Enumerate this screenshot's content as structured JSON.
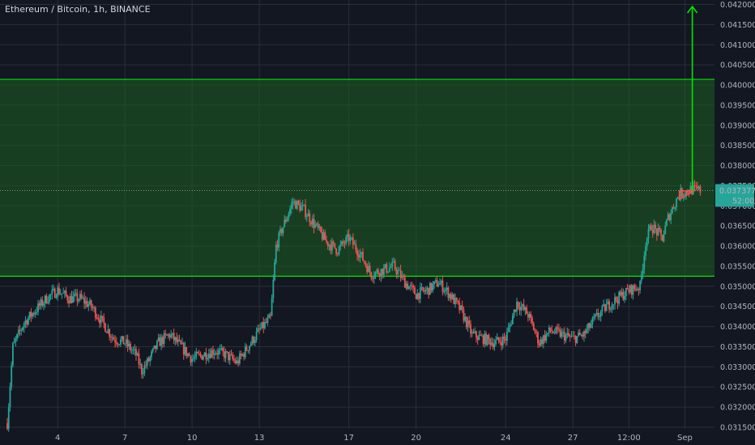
{
  "header": {
    "title": "Ethereum / Bitcoin, 1h, BINANCE"
  },
  "price_label": {
    "value": "0.037377",
    "countdown": "52:00"
  },
  "colors": {
    "background": "#131722",
    "grid": "#2a2e39",
    "up": "#26a69a",
    "down": "#ef5350",
    "zone_fill": "#1b5e20",
    "zone_line": "#00e600",
    "arrow": "#00e600",
    "price_badge": "#26a69a",
    "triangle": "#ef5350"
  },
  "chart_data": {
    "type": "candlestick",
    "title": "Ethereum / Bitcoin, 1h, BINANCE",
    "xlabel": "",
    "ylabel": "",
    "x_range": [
      "2019-08-01T18:00",
      "2019-09-01T17:00"
    ],
    "ylim": [
      0.03148,
      0.04205
    ],
    "grid": true,
    "x_ticks": [
      {
        "label": "4",
        "t": "2019-08-04T00:00"
      },
      {
        "label": "7",
        "t": "2019-08-07T00:00"
      },
      {
        "label": "10",
        "t": "2019-08-10T00:00"
      },
      {
        "label": "13",
        "t": "2019-08-13T00:00"
      },
      {
        "label": "17",
        "t": "2019-08-17T00:00"
      },
      {
        "label": "20",
        "t": "2019-08-20T00:00"
      },
      {
        "label": "24",
        "t": "2019-08-24T00:00"
      },
      {
        "label": "27",
        "t": "2019-08-27T00:00"
      },
      {
        "label": "12:00",
        "t": "2019-08-29T12:00"
      },
      {
        "label": "Sep",
        "t": "2019-09-01T00:00"
      }
    ],
    "y_ticks": [
      "0.031500",
      "0.032000",
      "0.032500",
      "0.033000",
      "0.033500",
      "0.034000",
      "0.034500",
      "0.035000",
      "0.035500",
      "0.036000",
      "0.036500",
      "0.037000",
      "0.037500",
      "0.038000",
      "0.038500",
      "0.039000",
      "0.039500",
      "0.040000",
      "0.040500",
      "0.041000",
      "0.041500",
      "0.042000"
    ],
    "last_price": 0.037377,
    "price_path": [
      [
        "2019-08-01T18:00",
        0.0316
      ],
      [
        "2019-08-02T00:00",
        0.0335
      ],
      [
        "2019-08-02T12:00",
        0.0341
      ],
      [
        "2019-08-03T00:00",
        0.0344
      ],
      [
        "2019-08-03T12:00",
        0.0347
      ],
      [
        "2019-08-04T00:00",
        0.0349
      ],
      [
        "2019-08-04T12:00",
        0.0347
      ],
      [
        "2019-08-05T00:00",
        0.0347
      ],
      [
        "2019-08-05T12:00",
        0.0345
      ],
      [
        "2019-08-06T00:00",
        0.0341
      ],
      [
        "2019-08-06T12:00",
        0.0337
      ],
      [
        "2019-08-07T00:00",
        0.0336
      ],
      [
        "2019-08-07T12:00",
        0.0333
      ],
      [
        "2019-08-07T18:00",
        0.0329
      ],
      [
        "2019-08-08T00:00",
        0.0331
      ],
      [
        "2019-08-08T12:00",
        0.0336
      ],
      [
        "2019-08-09T00:00",
        0.0338
      ],
      [
        "2019-08-09T12:00",
        0.0335
      ],
      [
        "2019-08-10T00:00",
        0.0332
      ],
      [
        "2019-08-10T12:00",
        0.0333
      ],
      [
        "2019-08-11T00:00",
        0.0334
      ],
      [
        "2019-08-11T12:00",
        0.0333
      ],
      [
        "2019-08-12T00:00",
        0.0331
      ],
      [
        "2019-08-12T12:00",
        0.0335
      ],
      [
        "2019-08-13T00:00",
        0.0339
      ],
      [
        "2019-08-13T12:00",
        0.0342
      ],
      [
        "2019-08-13T18:00",
        0.036
      ],
      [
        "2019-08-14T00:00",
        0.0364
      ],
      [
        "2019-08-14T12:00",
        0.0371
      ],
      [
        "2019-08-15T00:00",
        0.0369
      ],
      [
        "2019-08-15T12:00",
        0.0365
      ],
      [
        "2019-08-16T00:00",
        0.0361
      ],
      [
        "2019-08-16T12:00",
        0.0359
      ],
      [
        "2019-08-17T00:00",
        0.0362
      ],
      [
        "2019-08-17T12:00",
        0.0358
      ],
      [
        "2019-08-18T00:00",
        0.0353
      ],
      [
        "2019-08-18T12:00",
        0.0354
      ],
      [
        "2019-08-19T00:00",
        0.0355
      ],
      [
        "2019-08-19T12:00",
        0.0351
      ],
      [
        "2019-08-20T00:00",
        0.0348
      ],
      [
        "2019-08-20T12:00",
        0.0349
      ],
      [
        "2019-08-21T00:00",
        0.0351
      ],
      [
        "2019-08-21T12:00",
        0.0348
      ],
      [
        "2019-08-22T00:00",
        0.0344
      ],
      [
        "2019-08-22T12:00",
        0.0338
      ],
      [
        "2019-08-23T00:00",
        0.0337
      ],
      [
        "2019-08-23T12:00",
        0.0336
      ],
      [
        "2019-08-24T00:00",
        0.0337
      ],
      [
        "2019-08-24T12:00",
        0.0346
      ],
      [
        "2019-08-25T00:00",
        0.0343
      ],
      [
        "2019-08-25T12:00",
        0.0336
      ],
      [
        "2019-08-26T00:00",
        0.0339
      ],
      [
        "2019-08-26T12:00",
        0.0338
      ],
      [
        "2019-08-27T00:00",
        0.0337
      ],
      [
        "2019-08-27T12:00",
        0.0338
      ],
      [
        "2019-08-28T00:00",
        0.0342
      ],
      [
        "2019-08-28T12:00",
        0.0345
      ],
      [
        "2019-08-29T00:00",
        0.0347
      ],
      [
        "2019-08-29T12:00",
        0.0349
      ],
      [
        "2019-08-30T00:00",
        0.035
      ],
      [
        "2019-08-30T06:00",
        0.0361
      ],
      [
        "2019-08-30T12:00",
        0.0365
      ],
      [
        "2019-08-31T00:00",
        0.0362
      ],
      [
        "2019-08-31T06:00",
        0.0367
      ],
      [
        "2019-08-31T18:00",
        0.0373
      ],
      [
        "2019-09-01T06:00",
        0.0374
      ],
      [
        "2019-09-01T17:00",
        0.037377
      ]
    ],
    "annotations": {
      "zone": {
        "y_low": 0.03525,
        "y_high": 0.04014,
        "x_start": "2019-08-01T18:00",
        "x_end": "2019-09-01T17:00"
      },
      "arrow": {
        "t": "2019-09-01T08:00",
        "y_from": 0.03737,
        "y_to": 0.04195
      },
      "triangle": {
        "points": [
          [
            "2019-08-31T18:00",
            0.03715
          ],
          [
            "2019-08-31T18:00",
            0.03737
          ],
          [
            "2019-09-01T10:00",
            0.03737
          ]
        ]
      }
    }
  }
}
